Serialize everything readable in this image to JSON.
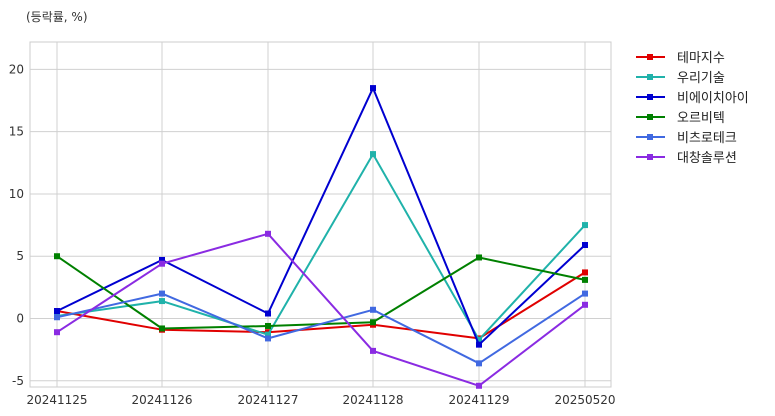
{
  "chart_data": {
    "type": "line",
    "unit_label": "(등락률, %)",
    "categories": [
      "20241125",
      "20241126",
      "20241127",
      "20241128",
      "20241129",
      "20250520"
    ],
    "ylim": [
      -5.5,
      22.2
    ],
    "yticks": [
      -5,
      0,
      5,
      10,
      15,
      20
    ],
    "grid": true,
    "legend_position": "right",
    "series": [
      {
        "name": "테마지수",
        "color": "#e00000",
        "values": [
          0.6,
          -0.9,
          -1.1,
          -0.5,
          -1.6,
          3.7
        ]
      },
      {
        "name": "우리기술",
        "color": "#20b2aa",
        "values": [
          0.2,
          1.4,
          -1.3,
          13.2,
          -1.7,
          7.5
        ]
      },
      {
        "name": "비에이치아이",
        "color": "#0000d0",
        "values": [
          0.6,
          4.7,
          0.4,
          18.5,
          -2.1,
          5.9
        ]
      },
      {
        "name": "오르비텍",
        "color": "#008000",
        "values": [
          5.0,
          -0.8,
          -0.6,
          -0.3,
          4.9,
          3.1
        ]
      },
      {
        "name": "비츠로테크",
        "color": "#4169e1",
        "values": [
          0.1,
          2.0,
          -1.6,
          0.7,
          -3.6,
          2.0
        ]
      },
      {
        "name": "대창솔루션",
        "color": "#8a2be2",
        "values": [
          -1.1,
          4.4,
          6.8,
          -2.6,
          -5.4,
          1.1
        ]
      }
    ]
  }
}
